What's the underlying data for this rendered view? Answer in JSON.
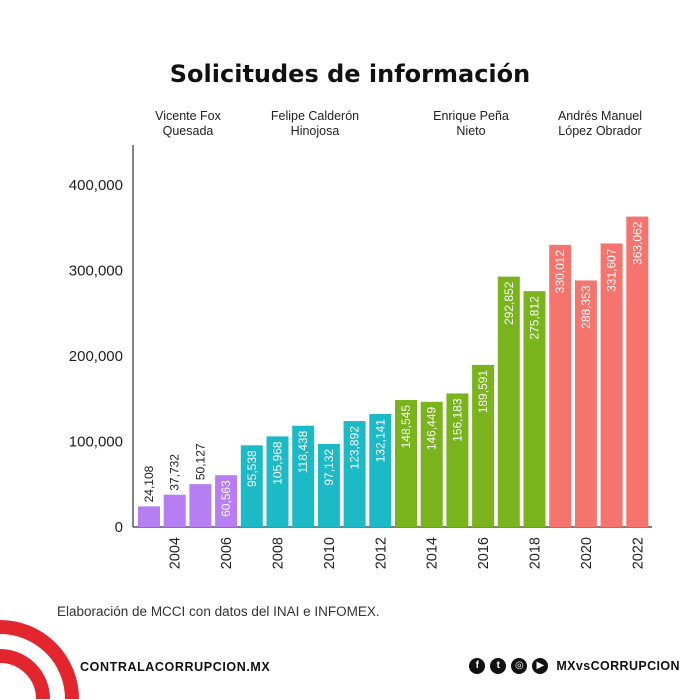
{
  "title": "Solicitudes de información",
  "periods": [
    {
      "line1": "Vicente Fox",
      "line2": "Quesada"
    },
    {
      "line1": "Felipe Calderón",
      "line2": "Hinojosa"
    },
    {
      "line1": "Enrique Peña",
      "line2": "Nieto"
    },
    {
      "line1": "Andrés Manuel",
      "line2": "López Obrador"
    }
  ],
  "source": "Elaboración de MCCI con datos del INAI e INFOMEX.",
  "footer": {
    "site": "CONTRALACORRUPCION.MX",
    "handle": "MXvsCORRUPCION",
    "social_icons": [
      "facebook-icon",
      "twitter-icon",
      "instagram-icon",
      "youtube-icon"
    ]
  },
  "chart_data": {
    "type": "bar",
    "title": "Solicitudes de información",
    "xlabel": "",
    "ylabel": "",
    "ylim": [
      0,
      450000
    ],
    "yticks": [
      0,
      100000,
      200000,
      300000,
      400000
    ],
    "ytick_labels": [
      "0",
      "100,000",
      "200,000",
      "300,000",
      "400,000"
    ],
    "x": [
      2003,
      2004,
      2005,
      2006,
      2007,
      2008,
      2009,
      2010,
      2011,
      2012,
      2013,
      2014,
      2015,
      2016,
      2017,
      2018,
      2019,
      2020,
      2021,
      2022
    ],
    "xtick_labels": {
      "2004": "2004",
      "2006": "2006",
      "2008": "2008",
      "2010": "2010",
      "2012": "2012",
      "2014": "2014",
      "2016": "2016",
      "2018": "2018",
      "2020": "2020",
      "2022": "2022"
    },
    "values": [
      24108,
      37732,
      50127,
      60563,
      95538,
      105968,
      118438,
      97132,
      123892,
      132141,
      148545,
      146449,
      156183,
      189591,
      292852,
      275812,
      330012,
      288353,
      331607,
      363062
    ],
    "labels": [
      "24,108",
      "37,732",
      "50,127",
      "60,563",
      "95,538",
      "105,968",
      "118,438",
      "97,132",
      "123,892",
      "132,141",
      "148,545",
      "146,449",
      "156,183",
      "189,591",
      "292,852",
      "275,812",
      "330,012",
      "288,353",
      "331,607",
      "363,062"
    ],
    "groups": [
      {
        "period": 0,
        "start": 0,
        "end": 3,
        "color": "#b77df2"
      },
      {
        "period": 1,
        "start": 4,
        "end": 9,
        "color": "#1cbac6"
      },
      {
        "period": 2,
        "start": 10,
        "end": 15,
        "color": "#79b41d"
      },
      {
        "period": 3,
        "start": 16,
        "end": 19,
        "color": "#f5746e"
      }
    ],
    "grid": false,
    "legend": "none"
  }
}
